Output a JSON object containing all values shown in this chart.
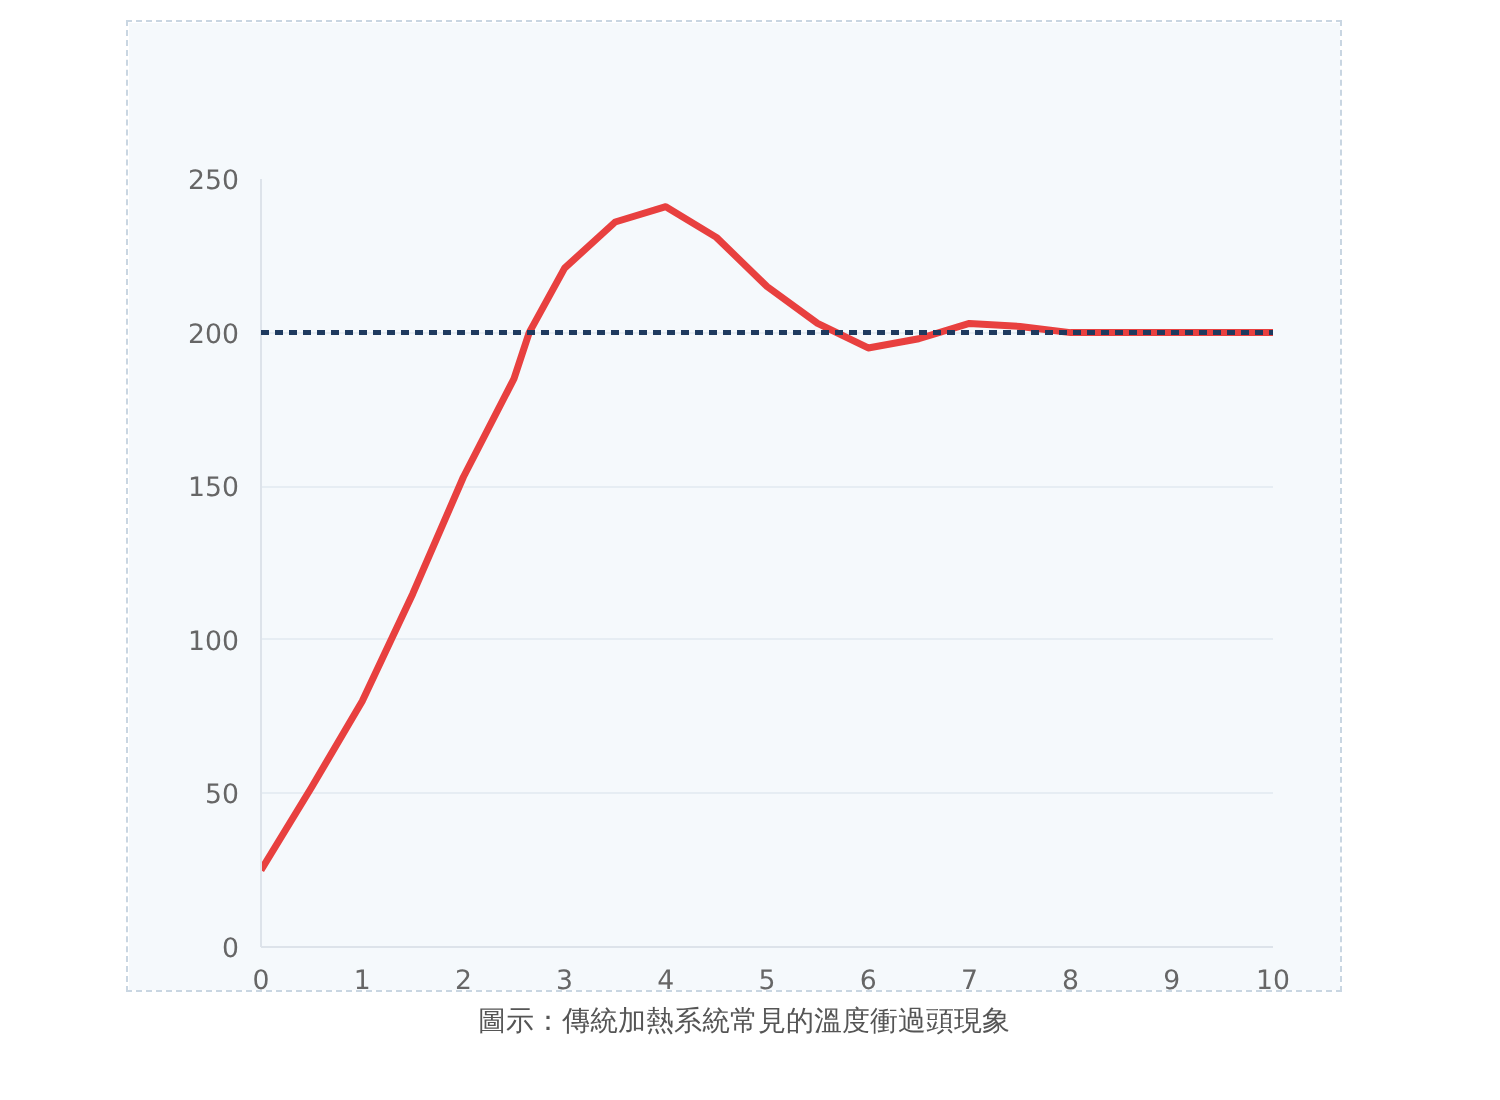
{
  "chart_data": {
    "type": "line",
    "x": [
      0,
      0.5,
      1,
      1.5,
      2,
      2.5,
      2.65,
      3,
      3.5,
      4,
      4.5,
      5,
      5.5,
      6,
      6.5,
      7,
      7.5,
      8,
      9,
      10
    ],
    "series": [
      {
        "color": "#e8403f",
        "values": [
          25,
          52,
          80,
          115,
          153,
          185,
          200,
          221,
          236,
          241,
          231,
          215,
          203,
          195,
          198,
          203,
          202,
          200,
          200,
          200
        ]
      }
    ],
    "xlim": [
      0,
      10
    ],
    "xticks": [
      0,
      1,
      2,
      3,
      4,
      5,
      6,
      7,
      8,
      9,
      10
    ],
    "ylim": [
      0,
      250
    ],
    "yticks": [
      0,
      50,
      100,
      150,
      200,
      250
    ],
    "grid": "y",
    "marker": "none",
    "line_style": "solid",
    "ref_lines": [
      {
        "axis": "y",
        "value": 200,
        "color": "#1e3a5f",
        "line_style": "dashed"
      }
    ],
    "annotations": [
      "圖示：傳統加熱系統常見的溫度衝過頭現象"
    ]
  }
}
